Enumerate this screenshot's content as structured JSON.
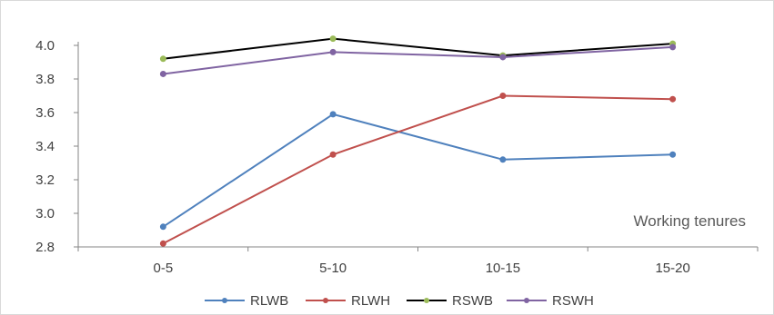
{
  "chart_data": {
    "type": "line",
    "categories": [
      "0-5",
      "5-10",
      "10-15",
      "15-20"
    ],
    "series": [
      {
        "name": "RLWB",
        "color": "#4F81BD",
        "values": [
          2.92,
          3.59,
          3.32,
          3.35
        ]
      },
      {
        "name": "RLWH",
        "color": "#C0504D",
        "values": [
          2.82,
          3.35,
          3.7,
          3.68
        ]
      },
      {
        "name": "RSWB",
        "color": "#000000",
        "marker_color": "#9BBB59",
        "values": [
          3.92,
          4.04,
          3.94,
          4.01
        ]
      },
      {
        "name": "RSWH",
        "color": "#8064A2",
        "values": [
          3.83,
          3.96,
          3.93,
          3.99
        ]
      }
    ],
    "ylim": [
      2.8,
      4.0
    ],
    "yticks": [
      "2.8",
      "3.0",
      "3.2",
      "3.4",
      "3.6",
      "3.8",
      "4.0"
    ],
    "annotation": "Working tenures",
    "grid": false,
    "legend_position": "bottom"
  }
}
